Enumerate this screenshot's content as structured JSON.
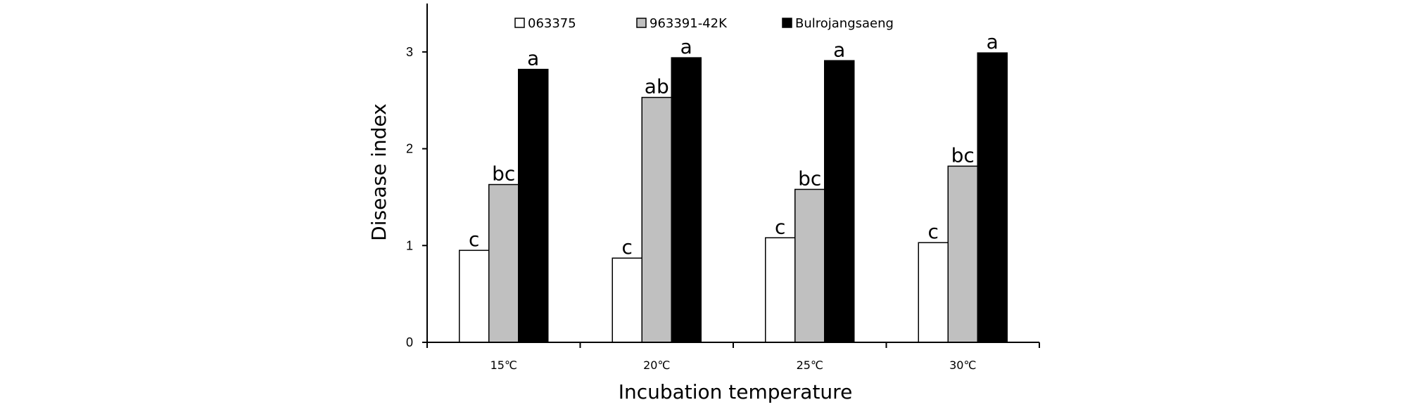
{
  "chart_data": {
    "type": "bar",
    "title": "",
    "xlabel": "Incubation temperature",
    "ylabel": "Disease index",
    "categories": [
      "15℃",
      "20℃",
      "25℃",
      "30℃"
    ],
    "ylim": [
      0,
      3.5
    ],
    "yticks": [
      0,
      1,
      2,
      3
    ],
    "grid": false,
    "legend_position": "top",
    "series": [
      {
        "name": "063375",
        "color": "#ffffff",
        "values": [
          0.95,
          0.87,
          1.08,
          1.03
        ],
        "labels": [
          "c",
          "c",
          "c",
          "c"
        ]
      },
      {
        "name": "963391-42K",
        "color": "#c0c0c0",
        "values": [
          1.63,
          2.53,
          1.58,
          1.82
        ],
        "labels": [
          "bc",
          "ab",
          "bc",
          "bc"
        ]
      },
      {
        "name": "Bulrojangsaeng",
        "color": "#000000",
        "values": [
          2.82,
          2.94,
          2.91,
          2.99
        ],
        "labels": [
          "a",
          "a",
          "a",
          "a"
        ]
      }
    ]
  }
}
